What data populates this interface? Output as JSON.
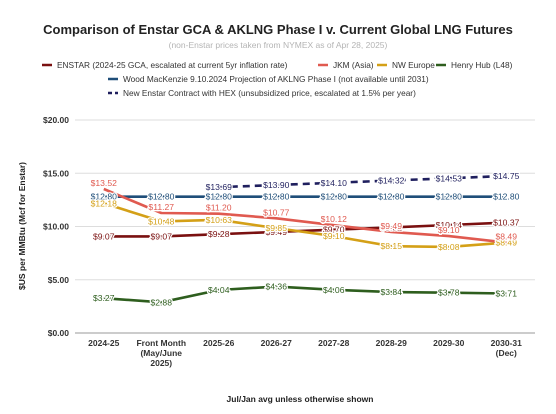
{
  "chart_data": {
    "type": "line",
    "title": "Comparison of Enstar GCA & AKLNG Phase I v. Current Global LNG Futures",
    "subtitle": "(non-Enstar prices taken from NYMEX as of Apr 28, 2025)",
    "ylabel": "$US per MMBtu (Mcf for Enstar)",
    "xlabel": "Jul/Jan avg unless otherwise shown",
    "ylim": [
      0,
      20
    ],
    "yticks": [
      "$0.00",
      "$5.00",
      "$10.00",
      "$15.00",
      "$20.00"
    ],
    "ytick_values": [
      0,
      5,
      10,
      15,
      20
    ],
    "grid": true,
    "legend_position": "top",
    "categories": [
      [
        "2024-25"
      ],
      [
        "Front Month",
        "(May/June",
        "2025)"
      ],
      [
        "2025-26"
      ],
      [
        "2026-27"
      ],
      [
        "2027-28"
      ],
      [
        "2028-29"
      ],
      [
        "2029-30"
      ],
      [
        "2030-31",
        "(Dec)"
      ]
    ],
    "series": [
      {
        "name": "ENSTAR (2024-25 GCA, escalated at current 5yr inflation rate)",
        "color": "#7a1010",
        "dash": false,
        "values": [
          9.07,
          9.07,
          9.28,
          9.49,
          9.7,
          9.92,
          10.14,
          10.37
        ],
        "labels": [
          "$9.07",
          "$9.07",
          "$9.28",
          "$9.49",
          "$9.70",
          "$9.92",
          "$10.14",
          "$10.37"
        ]
      },
      {
        "name": "JKM (Asia)",
        "color": "#e05a50",
        "dash": false,
        "values": [
          13.52,
          11.27,
          11.2,
          10.77,
          10.12,
          9.49,
          9.1,
          8.49
        ],
        "labels": [
          "$13.52",
          "$11.27",
          "$11.20",
          "$10.77",
          "$10.12",
          "$9.49",
          "$9.10",
          "$8.49"
        ]
      },
      {
        "name": "NW Europe",
        "color": "#d4a017",
        "dash": false,
        "values": [
          12.18,
          10.48,
          10.63,
          9.85,
          9.1,
          8.15,
          8.08,
          8.49
        ],
        "labels": [
          "$12.18",
          "$10.48",
          "$10.63",
          "$9.85",
          "$9.10",
          "$8.15",
          "$8.08",
          "$8.49"
        ]
      },
      {
        "name": "Henry Hub (L48)",
        "color": "#2e5e1e",
        "dash": false,
        "values": [
          3.27,
          2.88,
          4.04,
          4.36,
          4.06,
          3.84,
          3.78,
          3.71
        ],
        "labels": [
          "$3.27",
          "$2.88",
          "$4.04",
          "$4.36",
          "$4.06",
          "$3.84",
          "$3.78",
          "$3.71"
        ]
      },
      {
        "name": "Wood MacKenzie 9.10.2024 Projection of AKLNG Phase I (not available until 2031)",
        "color": "#1f4e79",
        "dash": false,
        "values": [
          12.8,
          12.8,
          12.8,
          12.8,
          12.8,
          12.8,
          12.8,
          12.8
        ],
        "labels": [
          "$12.80",
          "$12.80",
          "$12.80",
          "$12.80",
          "$12.80",
          "$12.80",
          "$12.80",
          "$12.80"
        ]
      },
      {
        "name": "New Enstar Contract with HEX (unsubsidized price, escalated at 1.5% per year)",
        "color": "#1f1f5e",
        "dash": true,
        "values": [
          null,
          null,
          13.69,
          13.9,
          14.1,
          14.32,
          14.53,
          14.75
        ],
        "labels": [
          "",
          "",
          "$13.69",
          "$13.90",
          "$14.10",
          "$14.32",
          "$14.53",
          "$14.75"
        ]
      }
    ]
  }
}
